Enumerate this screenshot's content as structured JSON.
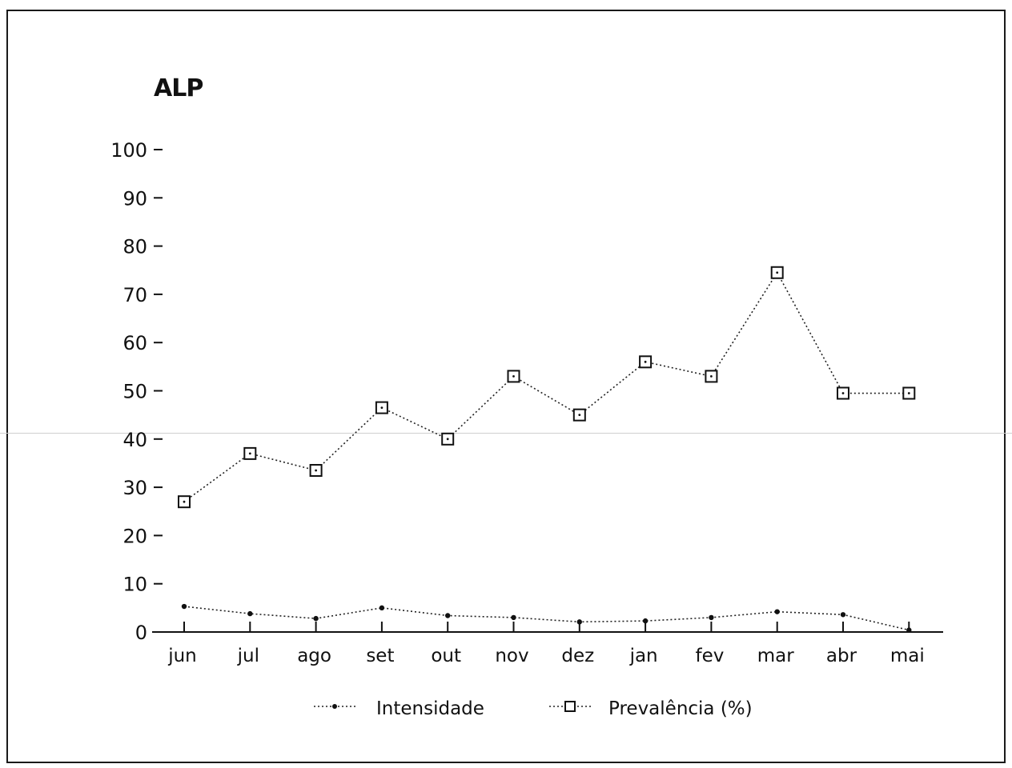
{
  "chart_data": {
    "type": "line",
    "title": "ALP",
    "categories": [
      "jun",
      "jul",
      "ago",
      "set",
      "out",
      "nov",
      "dez",
      "jan",
      "fev",
      "mar",
      "abr",
      "mai"
    ],
    "ylim": [
      0,
      100
    ],
    "yticks": [
      "0",
      "10",
      "20",
      "30",
      "40",
      "50",
      "60",
      "70",
      "80",
      "90",
      "100"
    ],
    "legend_position": "bottom",
    "grid": false,
    "series": [
      {
        "name": "Intensidade",
        "marker": "dot",
        "values": [
          5.3,
          3.8,
          2.8,
          5.0,
          3.4,
          3.0,
          2.1,
          2.3,
          3.0,
          4.2,
          3.6,
          0.4
        ]
      },
      {
        "name": "Prevalência (%)",
        "marker": "square",
        "values": [
          27,
          37,
          33.5,
          46.5,
          40,
          53,
          45,
          56,
          53,
          74.5,
          49.5,
          49.5
        ]
      }
    ]
  }
}
